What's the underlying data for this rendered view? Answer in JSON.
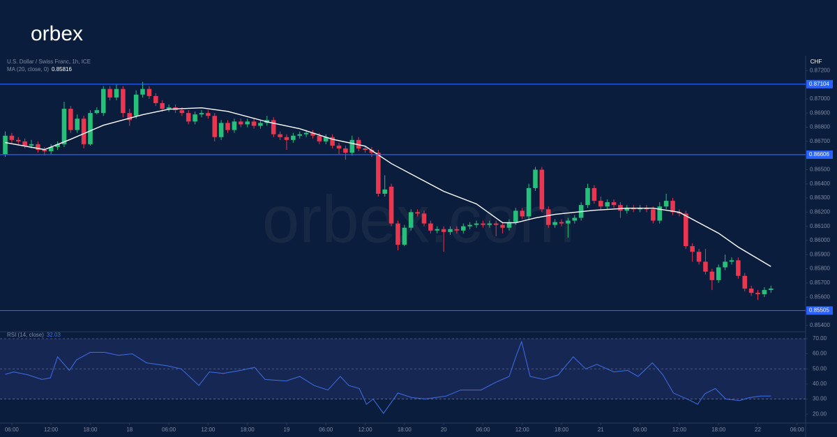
{
  "brand": {
    "logo": "orbex",
    "watermark": "orbex.com"
  },
  "chart_data": {
    "type": "candlestick",
    "title": "U.S. Dollar / Swiss Franc, 1h, ICE",
    "currency": "CHF",
    "up_color": "#26c07a",
    "down_color": "#e8374f",
    "level_color": "#2962ff",
    "grid": false,
    "x": [
      -1,
      0,
      1,
      2,
      3,
      4,
      5,
      6,
      7,
      8,
      9,
      10,
      11,
      12,
      13,
      14,
      15,
      16,
      17,
      18,
      19,
      20,
      21,
      22,
      23,
      24,
      25,
      26,
      27,
      28,
      29,
      30,
      31,
      32,
      33,
      34,
      35,
      36,
      37,
      38,
      39,
      40,
      41,
      42,
      43,
      44,
      45,
      46,
      47,
      48,
      49,
      50,
      51,
      52,
      53,
      54,
      55,
      56,
      57,
      58,
      59,
      60,
      61,
      62,
      63,
      64,
      65,
      66,
      67,
      68,
      69,
      70,
      71,
      72,
      73,
      74,
      75,
      76,
      77,
      78,
      79,
      80,
      81,
      82,
      83,
      84,
      85,
      86,
      87,
      88,
      89,
      90,
      91,
      92,
      93,
      94,
      95,
      96,
      97,
      98,
      99,
      100,
      101,
      102,
      103,
      104,
      105,
      106,
      107,
      108,
      109,
      110,
      111,
      112,
      113,
      114,
      115,
      116
    ],
    "open": [
      0.8661,
      0.8674,
      0.8671,
      0.867,
      0.8667,
      0.8668,
      0.8664,
      0.8663,
      0.8666,
      0.8668,
      0.8693,
      0.8678,
      0.8686,
      0.8668,
      0.869,
      0.869,
      0.8707,
      0.8701,
      0.8707,
      0.869,
      0.8688,
      0.8703,
      0.8707,
      0.8702,
      0.8697,
      0.8693,
      0.8694,
      0.8692,
      0.869,
      0.8684,
      0.8689,
      0.869,
      0.8688,
      0.8673,
      0.8683,
      0.8678,
      0.8684,
      0.8682,
      0.8684,
      0.8681,
      0.8683,
      0.8685,
      0.8675,
      0.8673,
      0.8671,
      0.8674,
      0.8675,
      0.8676,
      0.8674,
      0.867,
      0.8673,
      0.8667,
      0.8665,
      0.8662,
      0.8671,
      0.8665,
      0.8664,
      0.8662,
      0.8633,
      0.8638,
      0.8612,
      0.8597,
      0.8609,
      0.862,
      0.8619,
      0.8612,
      0.8607,
      0.8608,
      0.8606,
      0.8608,
      0.8607,
      0.861,
      0.8611,
      0.8612,
      0.8611,
      0.8612,
      0.8611,
      0.8609,
      0.8613,
      0.8621,
      0.8617,
      0.8637,
      0.865,
      0.8622,
      0.8611,
      0.8613,
      0.8612,
      0.8614,
      0.8616,
      0.8625,
      0.8637,
      0.8628,
      0.8624,
      0.8627,
      0.8625,
      0.8621,
      0.8623,
      0.8622,
      0.8623,
      0.8622,
      0.8614,
      0.8624,
      0.8628,
      0.862,
      0.8619,
      0.8596,
      0.8592,
      0.8585,
      0.8578,
      0.8572,
      0.8581,
      0.8585,
      0.8586,
      0.8575,
      0.8566,
      0.8563,
      0.8562,
      0.8565
    ],
    "high": [
      0.8677,
      0.8676,
      0.8673,
      0.8672,
      0.8671,
      0.867,
      0.8666,
      0.8668,
      0.867,
      0.8698,
      0.8695,
      0.8689,
      0.8688,
      0.8692,
      0.8694,
      0.8709,
      0.8709,
      0.871,
      0.8709,
      0.8693,
      0.8706,
      0.8712,
      0.8709,
      0.8704,
      0.8699,
      0.8696,
      0.8696,
      0.8694,
      0.8692,
      0.8691,
      0.8692,
      0.8692,
      0.869,
      0.8685,
      0.8685,
      0.8686,
      0.8686,
      0.8686,
      0.8686,
      0.8685,
      0.8688,
      0.8687,
      0.8677,
      0.8675,
      0.8676,
      0.8677,
      0.8678,
      0.8678,
      0.8676,
      0.8675,
      0.8675,
      0.8669,
      0.8667,
      0.8674,
      0.8673,
      0.8667,
      0.8666,
      0.8664,
      0.8646,
      0.864,
      0.8614,
      0.8611,
      0.8622,
      0.8622,
      0.8621,
      0.8614,
      0.861,
      0.861,
      0.861,
      0.861,
      0.8612,
      0.8613,
      0.8614,
      0.8614,
      0.8614,
      0.8614,
      0.8613,
      0.8615,
      0.8623,
      0.8623,
      0.864,
      0.8652,
      0.8652,
      0.8624,
      0.8615,
      0.8615,
      0.8616,
      0.8618,
      0.8627,
      0.864,
      0.8639,
      0.8631,
      0.8629,
      0.8629,
      0.8627,
      0.8625,
      0.8625,
      0.8625,
      0.8625,
      0.8624,
      0.8627,
      0.8633,
      0.863,
      0.8622,
      0.8621,
      0.8598,
      0.8594,
      0.8594,
      0.858,
      0.8583,
      0.859,
      0.8588,
      0.8588,
      0.8577,
      0.8568,
      0.8565,
      0.8567,
      0.8568
    ],
    "low": [
      0.8659,
      0.8669,
      0.8668,
      0.8665,
      0.8665,
      0.8662,
      0.866,
      0.8661,
      0.8664,
      0.8666,
      0.8676,
      0.8676,
      0.8665,
      0.8667,
      0.8689,
      0.8688,
      0.8699,
      0.8699,
      0.8687,
      0.8681,
      0.8686,
      0.8701,
      0.87,
      0.8695,
      0.8691,
      0.8691,
      0.869,
      0.8688,
      0.8682,
      0.8682,
      0.8687,
      0.8686,
      0.867,
      0.8671,
      0.8676,
      0.8676,
      0.868,
      0.868,
      0.8679,
      0.8679,
      0.8681,
      0.8673,
      0.8671,
      0.8664,
      0.8669,
      0.8672,
      0.8673,
      0.8672,
      0.8668,
      0.8668,
      0.8665,
      0.8661,
      0.8657,
      0.866,
      0.8663,
      0.8662,
      0.8659,
      0.8631,
      0.8631,
      0.861,
      0.8593,
      0.8596,
      0.8607,
      0.8617,
      0.861,
      0.8605,
      0.8605,
      0.8592,
      0.8604,
      0.8605,
      0.8605,
      0.8608,
      0.8609,
      0.8609,
      0.8609,
      0.8603,
      0.8605,
      0.8607,
      0.8611,
      0.8615,
      0.8615,
      0.8635,
      0.862,
      0.8609,
      0.8609,
      0.861,
      0.8602,
      0.8612,
      0.8614,
      0.8623,
      0.8626,
      0.8622,
      0.8622,
      0.8623,
      0.8616,
      0.8619,
      0.862,
      0.862,
      0.862,
      0.8612,
      0.8612,
      0.8622,
      0.8618,
      0.8617,
      0.8594,
      0.8585,
      0.8583,
      0.8576,
      0.8565,
      0.857,
      0.8579,
      0.8583,
      0.8573,
      0.8564,
      0.8561,
      0.8558,
      0.856,
      0.8563
    ],
    "close": [
      0.8674,
      0.8671,
      0.867,
      0.8667,
      0.8668,
      0.8664,
      0.8663,
      0.8666,
      0.8668,
      0.8693,
      0.8678,
      0.8686,
      0.8668,
      0.869,
      0.8692,
      0.8707,
      0.8701,
      0.8707,
      0.869,
      0.8685,
      0.8703,
      0.8707,
      0.8702,
      0.8697,
      0.8693,
      0.8694,
      0.8692,
      0.869,
      0.8684,
      0.8689,
      0.869,
      0.8688,
      0.8673,
      0.8683,
      0.8678,
      0.8684,
      0.8682,
      0.8684,
      0.8681,
      0.8683,
      0.8685,
      0.8675,
      0.8673,
      0.8671,
      0.8674,
      0.8675,
      0.8676,
      0.8674,
      0.867,
      0.8673,
      0.8667,
      0.8665,
      0.8662,
      0.8671,
      0.8665,
      0.8664,
      0.8662,
      0.8633,
      0.8636,
      0.8612,
      0.8597,
      0.8609,
      0.862,
      0.8619,
      0.8612,
      0.8607,
      0.8608,
      0.8606,
      0.8608,
      0.8607,
      0.861,
      0.8611,
      0.8612,
      0.8611,
      0.8612,
      0.8611,
      0.8609,
      0.8613,
      0.8621,
      0.8617,
      0.8637,
      0.865,
      0.8622,
      0.8611,
      0.8613,
      0.8612,
      0.8614,
      0.8616,
      0.8625,
      0.8637,
      0.8628,
      0.8624,
      0.8627,
      0.8625,
      0.8621,
      0.8623,
      0.8622,
      0.8623,
      0.8622,
      0.8614,
      0.8624,
      0.8628,
      0.862,
      0.8619,
      0.8596,
      0.8592,
      0.8585,
      0.8578,
      0.8572,
      0.8581,
      0.8585,
      0.8586,
      0.8575,
      0.8566,
      0.8563,
      0.8562,
      0.8565,
      0.8566
    ],
    "xlim": [
      -1.8,
      121.3
    ],
    "xticks": [
      {
        "value": 0,
        "label": "06:00"
      },
      {
        "value": 6,
        "label": "12:00"
      },
      {
        "value": 12,
        "label": "18:00"
      },
      18,
      {
        "value": 24,
        "label": "06:00"
      },
      {
        "value": 30,
        "label": "12:00"
      },
      {
        "value": 36,
        "label": "18:00"
      },
      {
        "value": 42,
        "label": "19"
      },
      {
        "value": 48,
        "label": "06:00"
      },
      {
        "value": 54,
        "label": "12:00"
      },
      {
        "value": 60,
        "label": "18:00"
      },
      {
        "value": 66,
        "label": "20"
      },
      {
        "value": 72,
        "label": "06:00"
      },
      {
        "value": 78,
        "label": "12:00"
      },
      {
        "value": 84,
        "label": "18:00"
      },
      {
        "value": 90,
        "label": "21"
      },
      {
        "value": 96,
        "label": "06:00"
      },
      {
        "value": 102,
        "label": "12:00"
      },
      {
        "value": 108,
        "label": "18:00"
      },
      {
        "value": 114,
        "label": "22"
      },
      {
        "value": 120,
        "label": "06:00"
      }
    ],
    "ylim": [
      0.8536,
      0.8728
    ],
    "yticks": [
      {
        "value": 0.854,
        "label": "0.85400"
      },
      {
        "value": 0.855,
        "label": "0.85500"
      },
      {
        "value": 0.856,
        "label": "0.85600"
      },
      {
        "value": 0.857,
        "label": "0.85700"
      },
      {
        "value": 0.858,
        "label": "0.85800"
      },
      {
        "value": 0.859,
        "label": "0.85900"
      },
      {
        "value": 0.86,
        "label": "0.86000"
      },
      {
        "value": 0.861,
        "label": "0.86100"
      },
      {
        "value": 0.862,
        "label": "0.86200"
      },
      {
        "value": 0.863,
        "label": "0.86300"
      },
      {
        "value": 0.864,
        "label": "0.86400"
      },
      {
        "value": 0.865,
        "label": "0.86500"
      },
      {
        "value": 0.866,
        "label": "0.86600"
      },
      {
        "value": 0.867,
        "label": "0.86700"
      },
      {
        "value": 0.868,
        "label": "0.86800"
      },
      {
        "value": 0.869,
        "label": "0.86900"
      },
      {
        "value": 0.87,
        "label": "0.87000"
      },
      {
        "value": 0.871,
        "label": "0.87100"
      },
      {
        "value": 0.872,
        "label": "0.87200"
      }
    ],
    "levels": [
      0.87104,
      0.86606,
      0.85505
    ],
    "ma": {
      "name": "MA (20, close, 0)",
      "color": "#ffffff",
      "x": [
        -1,
        5,
        9,
        14,
        20,
        24,
        29,
        33,
        39,
        44,
        49,
        54,
        58,
        62,
        66,
        71,
        75,
        77,
        80,
        83,
        89,
        94,
        98,
        102,
        105,
        108,
        111,
        116
      ],
      "values": [
        0.86691,
        0.86642,
        0.86715,
        0.86814,
        0.86888,
        0.86927,
        0.86937,
        0.86912,
        0.86838,
        0.86789,
        0.86715,
        0.86666,
        0.86543,
        0.86445,
        0.86347,
        0.86258,
        0.86125,
        0.86125,
        0.86159,
        0.86184,
        0.86213,
        0.86228,
        0.86228,
        0.86199,
        0.86125,
        0.86051,
        0.85953,
        0.85816
      ]
    },
    "rsi": {
      "name": "RSI (14, close)",
      "color": "#3f6fe6",
      "band_color": "#4a5bc4",
      "x": [
        -1,
        0.3,
        2.5,
        4.6,
        5.9,
        7,
        8.8,
        9.9,
        12,
        14.2,
        16.3,
        18.4,
        20.6,
        23.8,
        25.9,
        28.6,
        30.2,
        32.3,
        35,
        37.1,
        38.7,
        41.9,
        44,
        46.2,
        48.3,
        50.2,
        51.5,
        53.1,
        54.2,
        55.2,
        56.8,
        59,
        61.1,
        63.2,
        66.4,
        68.6,
        71.7,
        73.9,
        76,
        77.1,
        77.9,
        79.2,
        81.3,
        83.5,
        85.8,
        87.7,
        89.4,
        92,
        94.1,
        95.7,
        97.9,
        99.5,
        101.1,
        103.7,
        104.8,
        105.9,
        107.5,
        109.1,
        111.2,
        112.8,
        114.4,
        116
      ],
      "values": [
        46.4,
        48,
        46,
        43,
        44,
        58,
        49,
        56,
        61,
        61,
        59,
        60,
        54,
        52,
        50,
        39,
        48,
        47,
        49,
        51,
        43,
        42,
        45,
        39,
        36,
        45,
        39,
        37,
        26.5,
        30,
        20.5,
        34,
        31,
        30,
        32,
        36,
        36,
        41,
        45,
        59,
        68,
        45,
        43,
        46,
        58,
        50,
        53,
        48,
        49,
        45,
        54,
        46,
        34,
        29,
        26.5,
        33.5,
        37,
        30,
        29,
        31,
        32,
        32.03
      ],
      "ylim": [
        15,
        73.7
      ],
      "yticks": [
        {
          "value": 20,
          "label": "20.00"
        },
        {
          "value": 30,
          "label": "30.00"
        },
        {
          "value": 40,
          "label": "40.00"
        },
        {
          "value": 50,
          "label": "50.00"
        },
        {
          "value": 60,
          "label": "60.00"
        },
        {
          "value": 70,
          "label": "70.00"
        }
      ],
      "guides": [
        70,
        50,
        30
      ]
    }
  }
}
